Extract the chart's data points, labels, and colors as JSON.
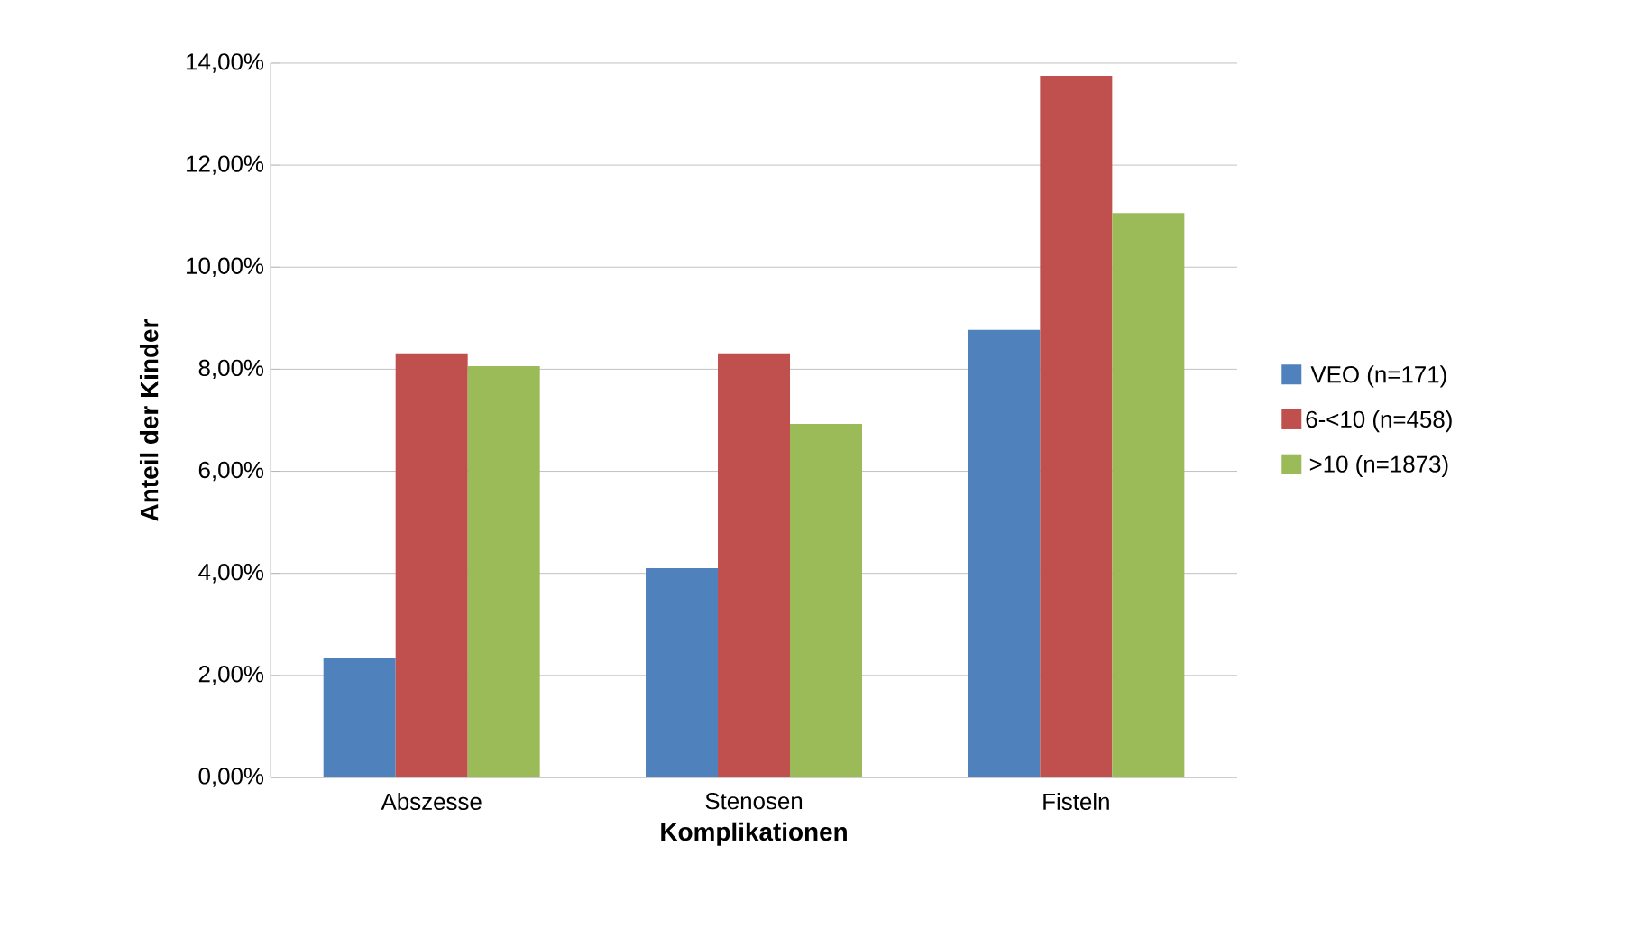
{
  "chart_data": {
    "type": "bar",
    "xlabel": "Komplikationen",
    "ylabel": "Anteil der Kinder",
    "categories": [
      "Abszesse",
      "Stenosen",
      "Fisteln"
    ],
    "series": [
      {
        "name": "VEO (n=171)",
        "color": "#4f81bd",
        "values": [
          2.35,
          4.1,
          8.77
        ]
      },
      {
        "name": "6-<10 (n=458)",
        "color": "#c0504d",
        "values": [
          8.31,
          8.31,
          13.75
        ]
      },
      {
        "name": ">10 (n=1873)",
        "color": "#9bbb59",
        "values": [
          8.06,
          6.93,
          11.06
        ]
      }
    ],
    "ylim": [
      0,
      14
    ],
    "yticks": [
      {
        "value": 0,
        "label": "0,00%"
      },
      {
        "value": 2,
        "label": "2,00%"
      },
      {
        "value": 4,
        "label": "4,00%"
      },
      {
        "value": 6,
        "label": "6,00%"
      },
      {
        "value": 8,
        "label": "8,00%"
      },
      {
        "value": 10,
        "label": "10,00%"
      },
      {
        "value": 12,
        "label": "12,00%"
      },
      {
        "value": 14,
        "label": "14,00%"
      }
    ],
    "grid": "y",
    "legend": "right"
  }
}
